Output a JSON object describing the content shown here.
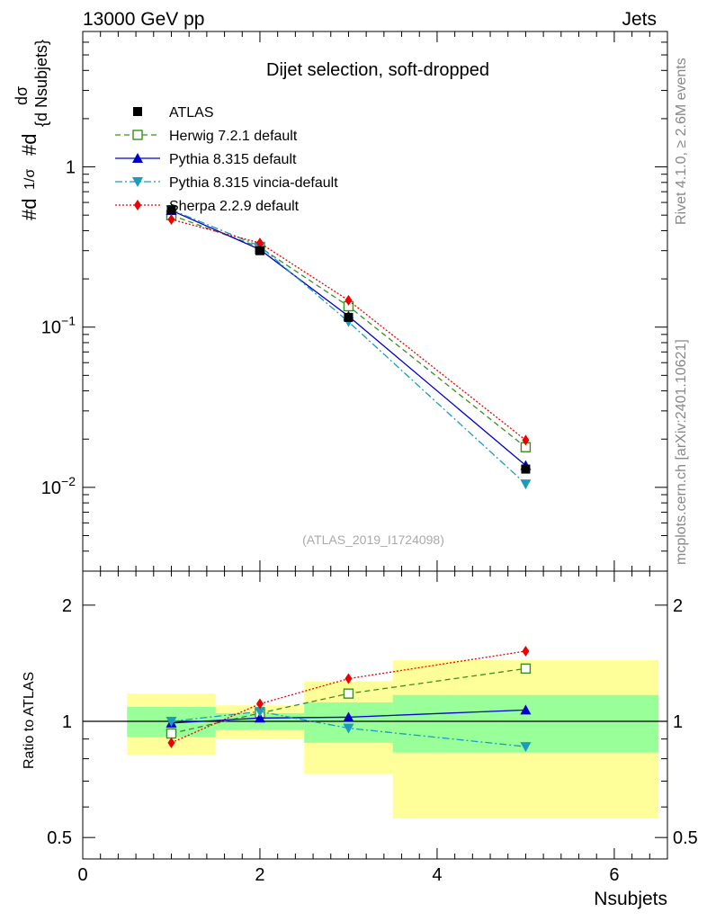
{
  "header": {
    "left": "13000 GeV pp",
    "right": "Jets"
  },
  "side_labels": {
    "rivet": "Rivet 4.1.0, ≥ 2.6M events",
    "mcplots": "mcplots.cern.ch [arXiv:2401.10621]"
  },
  "chart_data": [
    {
      "type": "line",
      "panel": "main",
      "title": "Dijet selection, soft-dropped",
      "analysis_label": "(ATLAS_2019_I1724098)",
      "xlabel": "Nsubjets",
      "ylabel_parts": {
        "prefix": "#d",
        "fraction": "1/σ",
        "mid": "#d",
        "num": "dσ",
        "den": "{d Nsubjets}"
      },
      "yscale": "log",
      "xlim": [
        0,
        6.6
      ],
      "ylim": [
        0.003,
        7.0
      ],
      "yticks": [
        {
          "value": 0.01,
          "base": "10",
          "exp": "−2"
        },
        {
          "value": 0.1,
          "base": "10",
          "exp": "−1"
        },
        {
          "value": 1,
          "base": "1",
          "exp": ""
        }
      ],
      "legend_position": "top-left",
      "series": [
        {
          "name": "ATLAS",
          "color": "#000000",
          "marker": "square",
          "dash": "",
          "x": [
            1,
            2,
            3,
            5
          ],
          "values": [
            0.54,
            0.3,
            0.115,
            0.013
          ]
        },
        {
          "name": "Herwig 7.2.1 default",
          "color": "#3a8f1e",
          "marker": "open-square",
          "dash": "6,4",
          "x": [
            1,
            2,
            3,
            5
          ],
          "values": [
            0.5,
            0.315,
            0.135,
            0.0178
          ]
        },
        {
          "name": "Pythia 8.315 default",
          "color": "#0000cc",
          "marker": "triangle-up",
          "dash": "",
          "x": [
            1,
            2,
            3,
            5
          ],
          "values": [
            0.535,
            0.305,
            0.117,
            0.0137
          ]
        },
        {
          "name": "Pythia 8.315 vincia-default",
          "color": "#1a9cbf",
          "marker": "triangle-down",
          "dash": "8,3,2,3",
          "x": [
            1,
            2,
            3,
            5
          ],
          "values": [
            0.54,
            0.32,
            0.108,
            0.0105
          ]
        },
        {
          "name": "Sherpa 2.2.9 default",
          "color": "#ee0000",
          "marker": "diamond",
          "dash": "2,2",
          "x": [
            1,
            2,
            3,
            5
          ],
          "values": [
            0.47,
            0.335,
            0.147,
            0.0197
          ]
        }
      ]
    },
    {
      "type": "line",
      "panel": "ratio",
      "ylabel": "Ratio to ATLAS",
      "xlabel": "Nsubjets",
      "yscale": "log",
      "xlim": [
        0,
        6.6
      ],
      "ylim": [
        0.44,
        2.45
      ],
      "xticks": [
        0,
        2,
        4,
        6
      ],
      "yticks": [
        0.5,
        1,
        2
      ],
      "reference_line": 1,
      "bands": [
        {
          "xlo": 0.5,
          "xhi": 1.5,
          "green": [
            0.91,
            1.09
          ],
          "yellow": [
            0.82,
            1.18
          ]
        },
        {
          "xlo": 1.5,
          "xhi": 2.5,
          "green": [
            0.95,
            1.05
          ],
          "yellow": [
            0.9,
            1.1
          ]
        },
        {
          "xlo": 2.5,
          "xhi": 3.5,
          "green": [
            0.88,
            1.12
          ],
          "yellow": [
            0.73,
            1.27
          ]
        },
        {
          "xlo": 3.5,
          "xhi": 6.5,
          "green": [
            0.83,
            1.17
          ],
          "yellow": [
            0.56,
            1.44
          ]
        }
      ],
      "series": [
        {
          "name": "Herwig 7.2.1 default",
          "color": "#3a8f1e",
          "marker": "open-square",
          "dash": "6,4",
          "x": [
            1,
            2,
            3,
            5
          ],
          "values": [
            0.93,
            1.05,
            1.18,
            1.37
          ]
        },
        {
          "name": "Pythia 8.315 default",
          "color": "#0000cc",
          "marker": "triangle-up",
          "dash": "",
          "x": [
            1,
            2,
            3,
            5
          ],
          "values": [
            0.99,
            1.02,
            1.025,
            1.07
          ]
        },
        {
          "name": "Pythia 8.315 vincia-default",
          "color": "#1a9cbf",
          "marker": "triangle-down",
          "dash": "8,3,2,3",
          "x": [
            1,
            2,
            3,
            5
          ],
          "values": [
            1.0,
            1.06,
            0.96,
            0.86
          ]
        },
        {
          "name": "Sherpa 2.2.9 default",
          "color": "#ee0000",
          "marker": "diamond",
          "dash": "2,2",
          "x": [
            1,
            2,
            3,
            5
          ],
          "values": [
            0.88,
            1.11,
            1.29,
            1.52
          ]
        }
      ]
    }
  ]
}
